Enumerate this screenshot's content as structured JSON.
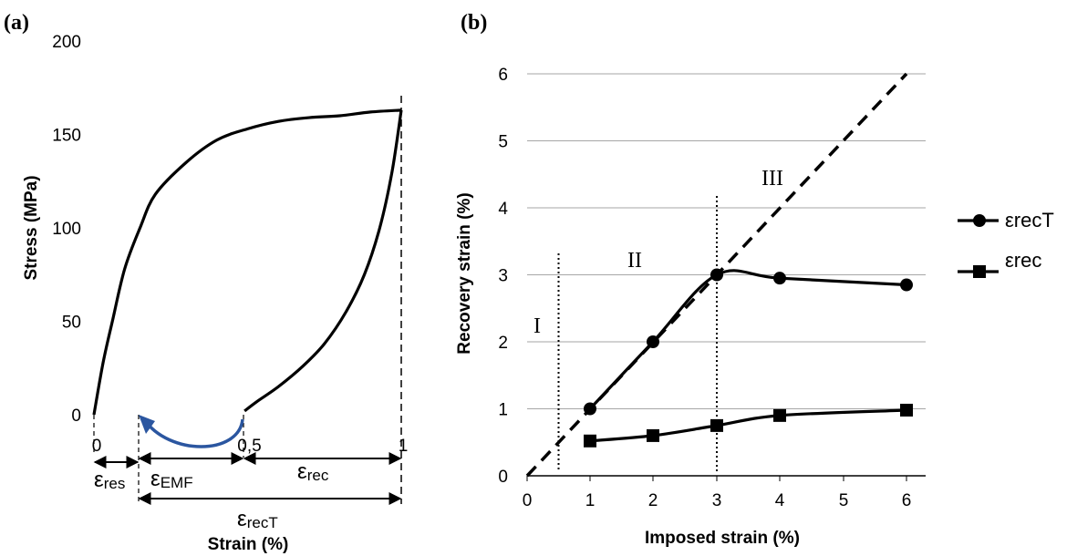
{
  "chart_data": [
    {
      "panel": "(a)",
      "type": "line",
      "ylabel": "Stress (MPa)",
      "xlabel": "Strain (%)",
      "yticks": [
        "0",
        "50",
        "100",
        "150",
        "200"
      ],
      "xticks": [
        "0",
        "0,5",
        "1"
      ],
      "ylim": [
        0,
        200
      ],
      "xlim": [
        0,
        1
      ],
      "loading_curve": {
        "x": [
          0.0,
          0.03,
          0.06,
          0.1,
          0.15,
          0.2,
          0.3,
          0.4,
          0.5,
          0.6,
          0.7,
          0.8,
          0.9,
          1.0
        ],
        "y": [
          0,
          28,
          50,
          78,
          100,
          118,
          135,
          147,
          153,
          157,
          159,
          160,
          162,
          163
        ]
      },
      "unloading_curve": {
        "x": [
          1.0,
          0.97,
          0.93,
          0.88,
          0.82,
          0.75,
          0.68,
          0.6,
          0.53,
          0.49
        ],
        "y": [
          163,
          130,
          100,
          75,
          55,
          38,
          26,
          15,
          7,
          2
        ]
      },
      "annotations": {
        "res": {
          "main": "ε",
          "sub": "res"
        },
        "emf": {
          "main": "ε",
          "sub": "EMF"
        },
        "rec": {
          "main": "ε",
          "sub": "rec"
        },
        "recT": {
          "main": "ε",
          "sub": "recT"
        }
      },
      "accent_color": "#2b56a0"
    },
    {
      "panel": "(b)",
      "type": "line",
      "ylabel": "Recovery strain (%)",
      "xlabel": "Imposed strain (%)",
      "categories": [
        "0",
        "1",
        "2",
        "3",
        "4",
        "5",
        "6"
      ],
      "yticks": [
        "0",
        "1",
        "2",
        "3",
        "4",
        "5",
        "6"
      ],
      "ylim": [
        0,
        6
      ],
      "grid": true,
      "series": [
        {
          "name": "εrecT",
          "marker": "circle",
          "x": [
            1,
            2,
            3,
            4,
            6
          ],
          "values": [
            1.0,
            2.0,
            3.0,
            2.95,
            2.85
          ]
        },
        {
          "name": "εrec",
          "marker": "square",
          "x": [
            1,
            2,
            3,
            4,
            6
          ],
          "values": [
            0.52,
            0.6,
            0.75,
            0.9,
            0.98
          ]
        }
      ],
      "reference_line": {
        "style": "dashed",
        "x": [
          0,
          6
        ],
        "y": [
          0,
          6
        ]
      },
      "regions": [
        "I",
        "II",
        "III"
      ],
      "region_boundaries": [
        0.5,
        3
      ],
      "legend_position": "right"
    }
  ]
}
